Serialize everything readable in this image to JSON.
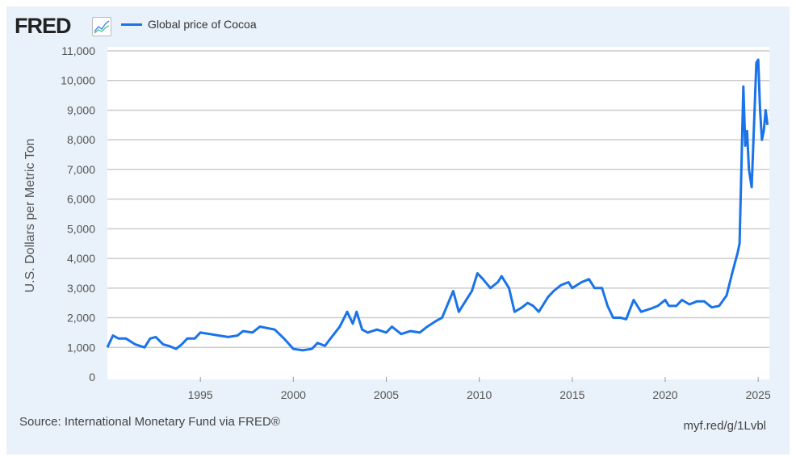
{
  "header": {
    "logo": "FRED",
    "logo_icon": "chart-line-icon",
    "legend_label": "Global price of Cocoa"
  },
  "footer": {
    "source": "Source: International Monetary Fund via FRED®",
    "link": "myf.red/g/1Lvbl"
  },
  "colors": {
    "series": "#1a73e8",
    "background": "#e9f1fa",
    "grid": "#cccccc"
  },
  "chart_data": {
    "type": "line",
    "title": "",
    "xlabel": "",
    "ylabel": "U.S. Dollars per Metric Ton",
    "xlim": [
      1990,
      2025.6
    ],
    "ylim": [
      0,
      11000
    ],
    "x_ticks": [
      1995,
      2000,
      2005,
      2010,
      2015,
      2020,
      2025
    ],
    "x_tick_labels": [
      "1995",
      "2000",
      "2005",
      "2010",
      "2015",
      "2020",
      "2025"
    ],
    "y_ticks": [
      0,
      1000,
      2000,
      3000,
      4000,
      5000,
      6000,
      7000,
      8000,
      9000,
      10000,
      11000
    ],
    "y_tick_labels": [
      "0",
      "1,000",
      "2,000",
      "3,000",
      "4,000",
      "5,000",
      "6,000",
      "7,000",
      "8,000",
      "9,000",
      "10,000",
      "11,000"
    ],
    "grid": true,
    "legend": "top-left",
    "series": [
      {
        "name": "Global price of Cocoa",
        "x": [
          1990.0,
          1990.3,
          1990.6,
          1991.0,
          1991.5,
          1992.0,
          1992.3,
          1992.6,
          1993.0,
          1993.3,
          1993.7,
          1994.0,
          1994.3,
          1994.7,
          1995.0,
          1995.5,
          1996.0,
          1996.5,
          1997.0,
          1997.3,
          1997.8,
          1998.2,
          1998.6,
          1999.0,
          1999.5,
          2000.0,
          2000.5,
          2001.0,
          2001.3,
          2001.7,
          2002.0,
          2002.5,
          2002.9,
          2003.2,
          2003.4,
          2003.7,
          2004.0,
          2004.5,
          2005.0,
          2005.3,
          2005.8,
          2006.3,
          2006.8,
          2007.2,
          2007.7,
          2008.0,
          2008.4,
          2008.6,
          2008.9,
          2009.2,
          2009.6,
          2009.9,
          2010.2,
          2010.6,
          2011.0,
          2011.2,
          2011.6,
          2011.9,
          2012.3,
          2012.6,
          2012.9,
          2013.2,
          2013.7,
          2014.0,
          2014.4,
          2014.8,
          2015.0,
          2015.5,
          2015.9,
          2016.2,
          2016.6,
          2016.9,
          2017.2,
          2017.6,
          2017.9,
          2018.3,
          2018.7,
          2019.2,
          2019.6,
          2020.0,
          2020.2,
          2020.6,
          2020.9,
          2021.3,
          2021.7,
          2022.1,
          2022.5,
          2022.9,
          2023.3,
          2023.6,
          2023.9,
          2024.0,
          2024.2,
          2024.3,
          2024.4,
          2024.5,
          2024.65,
          2024.9,
          2025.0,
          2025.1,
          2025.2,
          2025.3,
          2025.4,
          2025.5
        ],
        "values": [
          1000,
          1400,
          1300,
          1300,
          1100,
          1000,
          1300,
          1350,
          1100,
          1050,
          950,
          1100,
          1300,
          1300,
          1500,
          1450,
          1400,
          1350,
          1400,
          1550,
          1500,
          1700,
          1650,
          1600,
          1300,
          950,
          900,
          950,
          1150,
          1050,
          1300,
          1700,
          2200,
          1800,
          2200,
          1600,
          1500,
          1600,
          1500,
          1700,
          1450,
          1550,
          1500,
          1700,
          1900,
          2000,
          2600,
          2900,
          2200,
          2500,
          2900,
          3500,
          3300,
          3000,
          3200,
          3400,
          3000,
          2200,
          2350,
          2500,
          2400,
          2200,
          2700,
          2900,
          3100,
          3200,
          3000,
          3200,
          3300,
          3000,
          3000,
          2400,
          2000,
          2000,
          1950,
          2600,
          2200,
          2300,
          2400,
          2600,
          2400,
          2400,
          2600,
          2450,
          2550,
          2550,
          2350,
          2400,
          2750,
          3500,
          4200,
          4500,
          9800,
          7800,
          8300,
          7000,
          6400,
          10600,
          10700,
          9000,
          8000,
          8300,
          9000,
          8500
        ]
      }
    ]
  }
}
